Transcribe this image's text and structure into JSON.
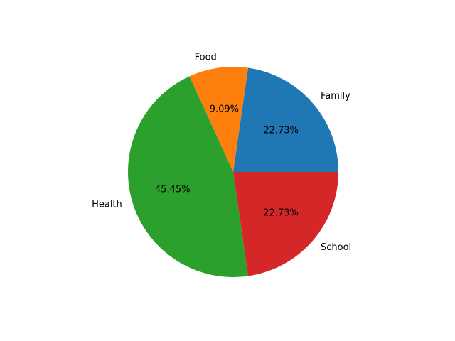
{
  "chart_data": {
    "type": "pie",
    "categories": [
      "Family",
      "Food",
      "Health",
      "School"
    ],
    "values": [
      22.73,
      9.09,
      45.45,
      22.73
    ],
    "percent_labels": [
      "22.73%",
      "9.09%",
      "45.45%",
      "22.73%"
    ],
    "colors": [
      "#1f77b4",
      "#ff7f0e",
      "#2ca02c",
      "#d62728"
    ],
    "start_angle_deg": 0,
    "direction": "counterclockwise",
    "legend": "none"
  }
}
